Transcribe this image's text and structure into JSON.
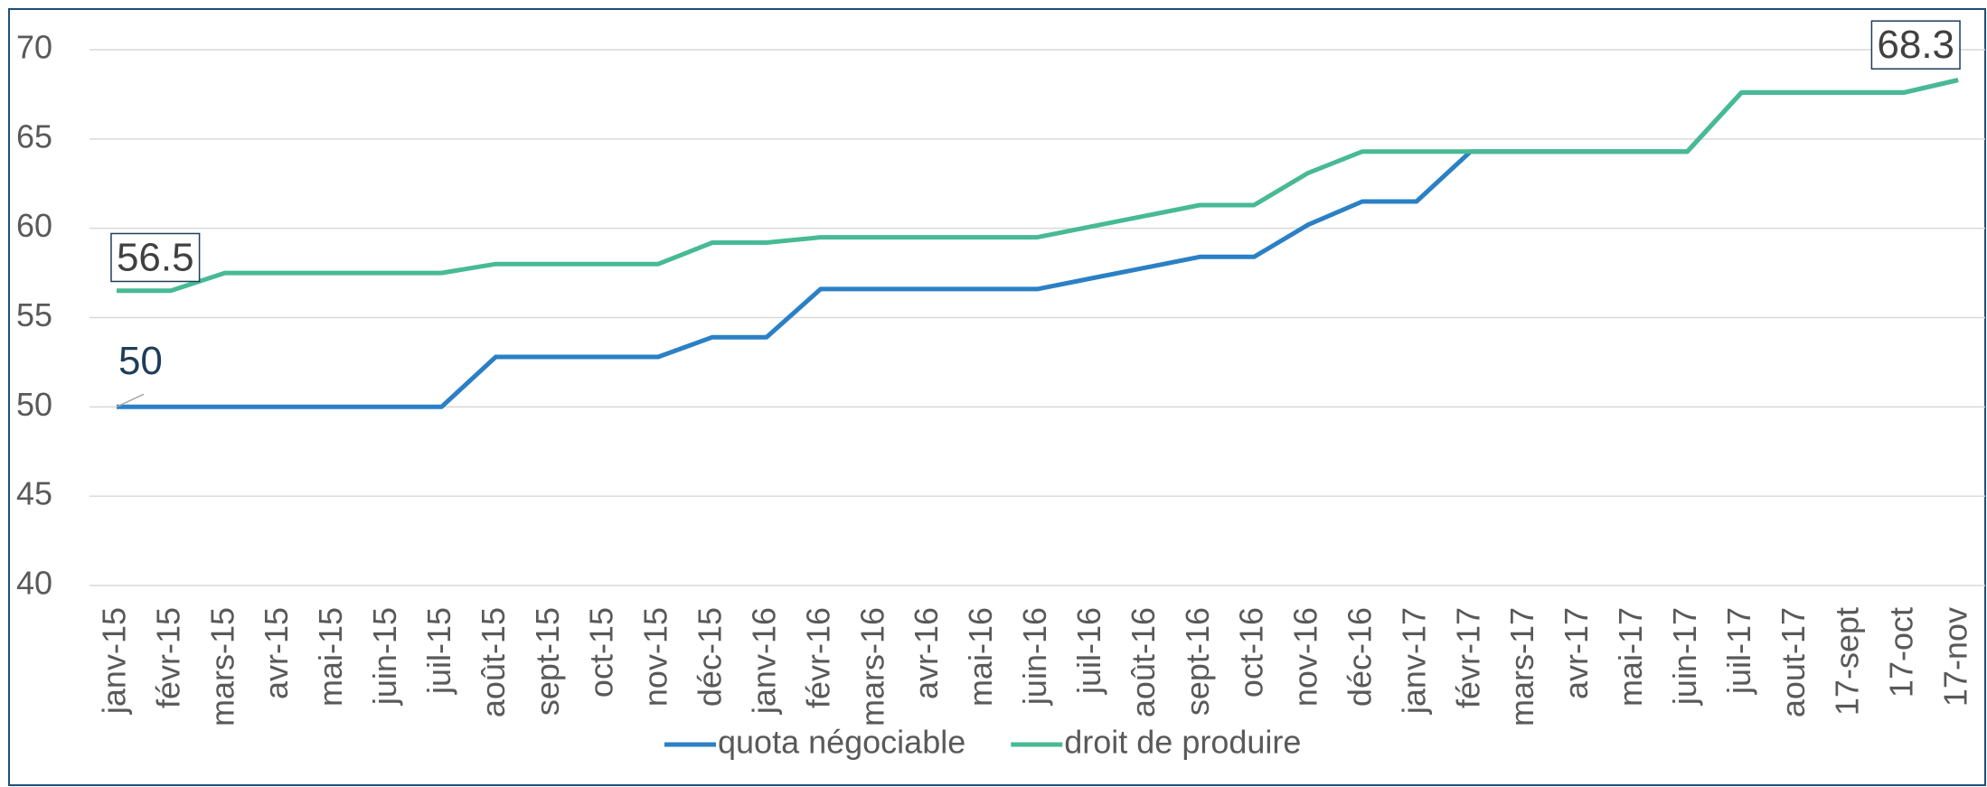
{
  "chart_data": {
    "type": "line",
    "categories": [
      "janv-15",
      "févr-15",
      "mars-15",
      "avr-15",
      "mai-15",
      "juin-15",
      "juil-15",
      "août-15",
      "sept-15",
      "oct-15",
      "nov-15",
      "déc-15",
      "janv-16",
      "févr-16",
      "mars-16",
      "avr-16",
      "mai-16",
      "juin-16",
      "juil-16",
      "août-16",
      "sept-16",
      "oct-16",
      "nov-16",
      "déc-16",
      "janv-17",
      "févr-17",
      "mars-17",
      "avr-17",
      "mai-17",
      "juin-17",
      "juil-17",
      "aout-17",
      "17-sept",
      "17-oct",
      "17-nov"
    ],
    "series": [
      {
        "name": "quota négociable",
        "color": "#2b80c5",
        "values": [
          50,
          50,
          50,
          50,
          50,
          50,
          50,
          52.8,
          52.8,
          52.8,
          52.8,
          53.9,
          53.9,
          56.6,
          56.6,
          56.6,
          56.6,
          56.6,
          57.2,
          57.8,
          58.4,
          58.4,
          60.2,
          61.5,
          61.5,
          64.3,
          64.3,
          64.3,
          64.3,
          64.3,
          67.6,
          67.6,
          67.6,
          67.6,
          68.3
        ]
      },
      {
        "name": "droit de produire",
        "color": "#47ba95",
        "values": [
          56.5,
          56.5,
          57.5,
          57.5,
          57.5,
          57.5,
          57.5,
          58,
          58,
          58,
          58,
          59.2,
          59.2,
          59.5,
          59.5,
          59.5,
          59.5,
          59.5,
          60.1,
          60.7,
          61.3,
          61.3,
          63.1,
          64.3,
          64.3,
          64.3,
          64.3,
          64.3,
          64.3,
          64.3,
          67.6,
          67.6,
          67.6,
          67.6,
          68.3
        ]
      }
    ],
    "ylim": [
      40,
      70
    ],
    "yticks": [
      40,
      45,
      50,
      55,
      60,
      65,
      70
    ],
    "grid": true,
    "legend": "bottom"
  }
}
